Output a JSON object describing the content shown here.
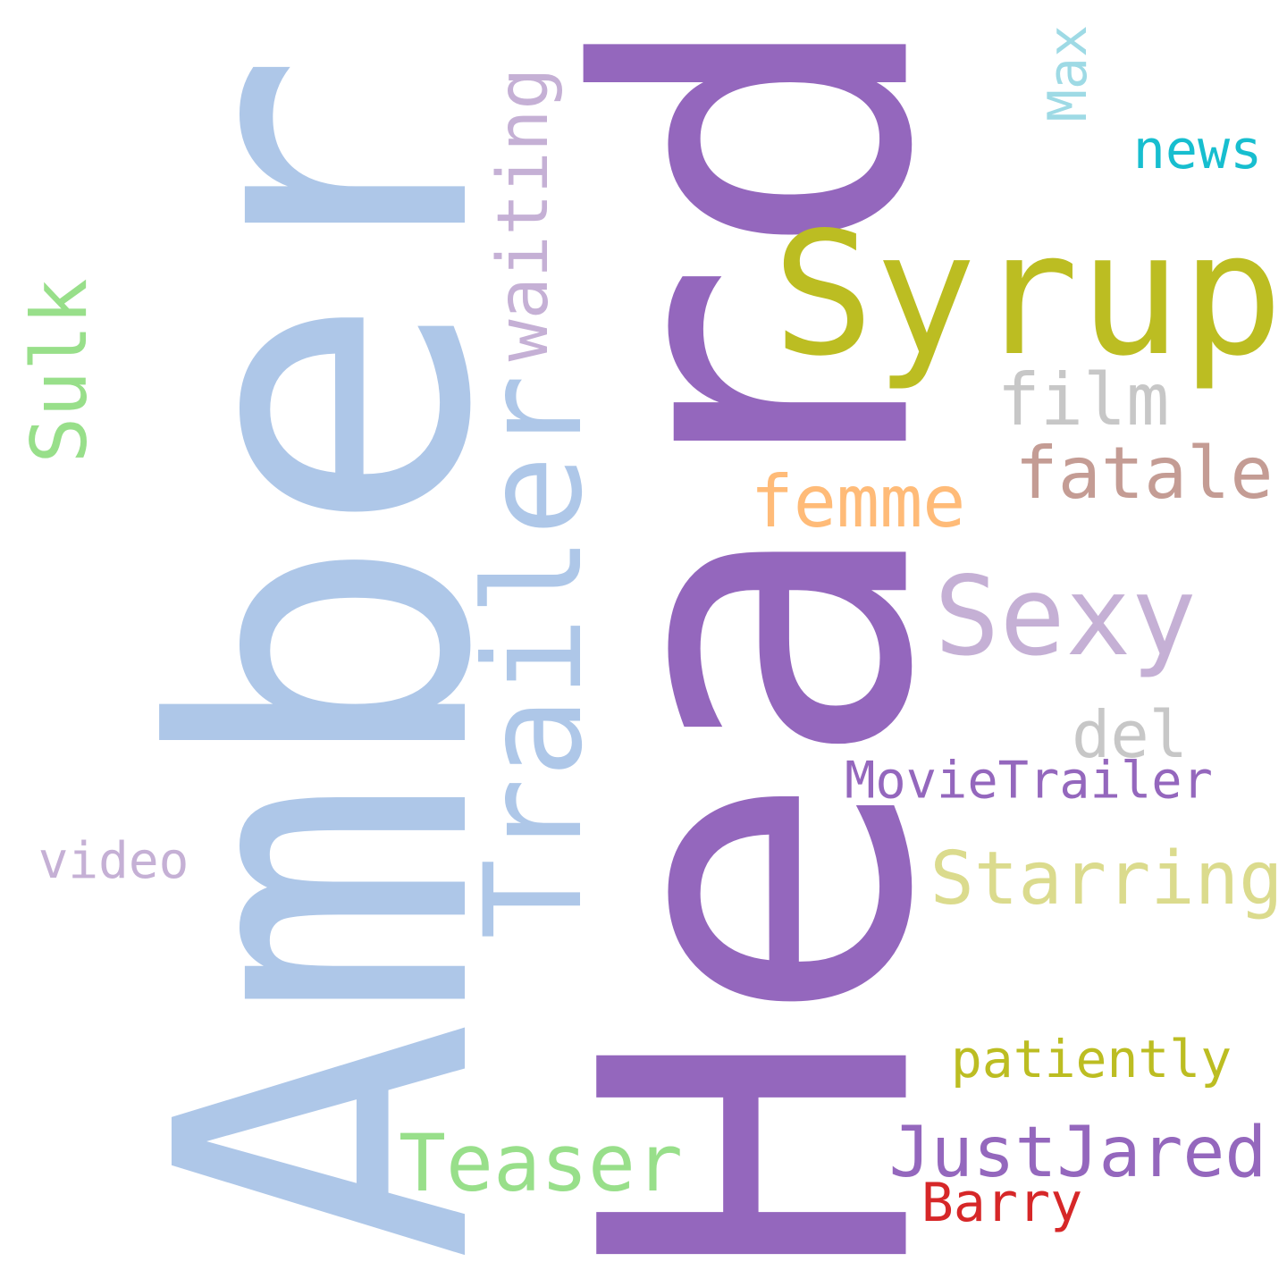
{
  "word_cloud": {
    "words": [
      {
        "id": "amber",
        "text": "Amber",
        "color": "#aec7e8",
        "orientation": "vertical"
      },
      {
        "id": "heard",
        "text": "Heard",
        "color": "#9467bd",
        "orientation": "vertical"
      },
      {
        "id": "syrup",
        "text": "Syrup",
        "color": "#bcbd22",
        "orientation": "horizontal"
      },
      {
        "id": "trailer",
        "text": "Trailer",
        "color": "#aec7e8",
        "orientation": "vertical"
      },
      {
        "id": "waiting",
        "text": "waiting",
        "color": "#c5b0d5",
        "orientation": "vertical"
      },
      {
        "id": "sulk",
        "text": "Sulk",
        "color": "#98df8a",
        "orientation": "vertical"
      },
      {
        "id": "max",
        "text": "Max",
        "color": "#9edae5",
        "orientation": "vertical"
      },
      {
        "id": "news",
        "text": "news",
        "color": "#17becf",
        "orientation": "horizontal"
      },
      {
        "id": "film",
        "text": "film",
        "color": "#c7c7c7",
        "orientation": "horizontal"
      },
      {
        "id": "fatale",
        "text": "fatale",
        "color": "#c49c94",
        "orientation": "horizontal"
      },
      {
        "id": "femme",
        "text": "femme",
        "color": "#ffbb78",
        "orientation": "horizontal"
      },
      {
        "id": "sexy",
        "text": "Sexy",
        "color": "#c5b0d5",
        "orientation": "horizontal"
      },
      {
        "id": "del",
        "text": "del",
        "color": "#c7c7c7",
        "orientation": "horizontal"
      },
      {
        "id": "movietrailer",
        "text": "MovieTrailer",
        "color": "#9467bd",
        "orientation": "horizontal"
      },
      {
        "id": "starring",
        "text": "Starring",
        "color": "#dbdb8d",
        "orientation": "horizontal"
      },
      {
        "id": "video",
        "text": "video",
        "color": "#c5b0d5",
        "orientation": "horizontal"
      },
      {
        "id": "patiently",
        "text": "patiently",
        "color": "#bcbd22",
        "orientation": "horizontal"
      },
      {
        "id": "teaser",
        "text": "Teaser",
        "color": "#98df8a",
        "orientation": "horizontal"
      },
      {
        "id": "justjared",
        "text": "JustJared",
        "color": "#9467bd",
        "orientation": "horizontal"
      },
      {
        "id": "barry",
        "text": "Barry",
        "color": "#d62728",
        "orientation": "horizontal"
      }
    ]
  }
}
